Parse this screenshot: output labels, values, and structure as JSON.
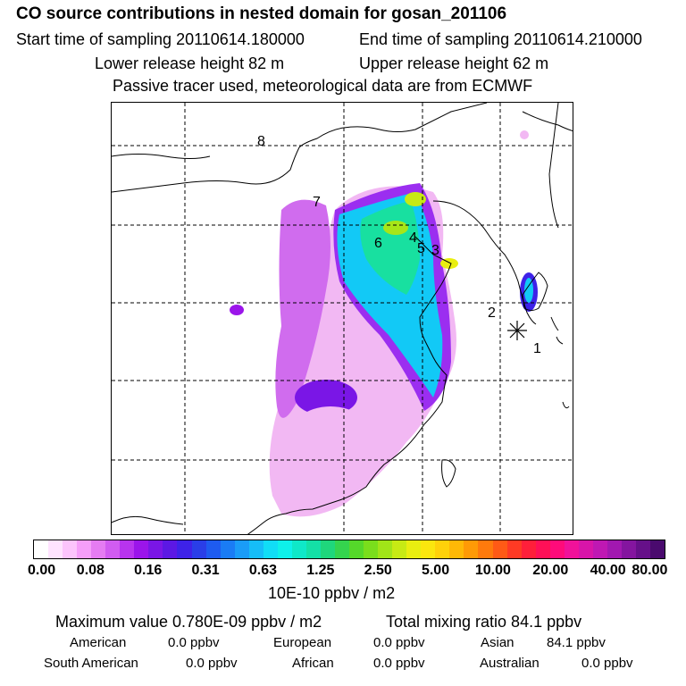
{
  "header": {
    "title": "CO  source contributions in nested domain for gosan_201106",
    "start_time": "Start time of sampling 20110614.180000",
    "end_time": "End time of sampling 20110614.210000",
    "lower_height": "Lower release height   82 m",
    "upper_height": "Upper release height   62 m",
    "tracer_note": "Passive tracer used, meteorological data are from ECMWF"
  },
  "map": {
    "markers": [
      "1",
      "2",
      "3",
      "4",
      "5",
      "6",
      "7",
      "8"
    ]
  },
  "colorbar": {
    "tick_labels": [
      "0.00",
      "0.08",
      "0.16",
      "0.31",
      "0.63",
      "1.25",
      "2.50",
      "5.00",
      "10.00",
      "20.00",
      "40.00",
      "80.00"
    ],
    "units": "10E-10 ppbv / m2",
    "colors": [
      "#ffffff",
      "#ffe3ff",
      "#fcc4fc",
      "#f59ef9",
      "#e57cf2",
      "#d15cf0",
      "#b834ee",
      "#9b15ea",
      "#7a16e6",
      "#5c18e4",
      "#3e22e8",
      "#2a3ee8",
      "#1e5bf0",
      "#1a7cf5",
      "#1a9cf8",
      "#16bdf8",
      "#11ddf6",
      "#0ef1ea",
      "#0fe8c8",
      "#14e0a6",
      "#1fd77c",
      "#35d44e",
      "#55d82a",
      "#7ade1c",
      "#a1e418",
      "#c7ea14",
      "#e9ee10",
      "#fbe60e",
      "#ffd10a",
      "#ffb806",
      "#ff9a06",
      "#ff7a0c",
      "#ff5a16",
      "#ff3a24",
      "#ff1f3a",
      "#ff1057",
      "#ff0b7a",
      "#f0129a",
      "#d815a9",
      "#bf18b3",
      "#a218b0",
      "#84159f",
      "#661089",
      "#4a0a6e"
    ]
  },
  "stats": {
    "max_label": "Maximum value  0.780E-09 ppbv / m2",
    "total_label": "Total mixing ratio       84.1 ppbv",
    "american_label": "American",
    "american_value": "0.0 ppbv",
    "european_label": "European",
    "european_value": "0.0 ppbv",
    "asian_label": "Asian",
    "asian_value": "84.1 ppbv",
    "south_american_label": "South American",
    "south_american_value": "0.0 ppbv",
    "african_label": "African",
    "african_value": "0.0 ppbv",
    "australian_label": "Australian",
    "australian_value": "0.0 ppbv"
  }
}
